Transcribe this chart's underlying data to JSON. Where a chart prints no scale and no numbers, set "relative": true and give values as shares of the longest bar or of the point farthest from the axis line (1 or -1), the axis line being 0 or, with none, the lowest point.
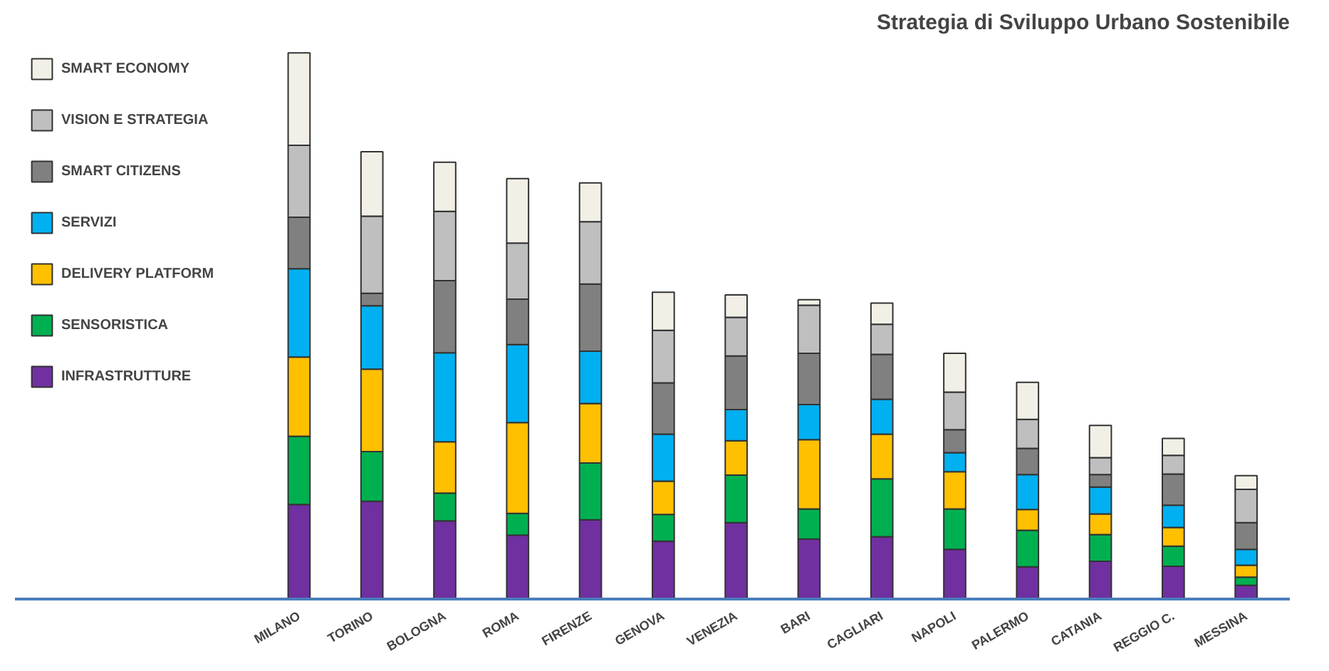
{
  "chart_data": {
    "type": "bar",
    "title": "Strategia di Sviluppo Urbano Sostenibile",
    "stacked": true,
    "relative": true,
    "legend": "left",
    "grid": false,
    "categories": [
      "MILANO",
      "TORINO",
      "BOLOGNA",
      "ROMA",
      "FIRENZE",
      "GENOVA",
      "VENEZIA",
      "BARI",
      "CAGLIARI",
      "NAPOLI",
      "PALERMO",
      "CATANIA",
      "REGGIO C.",
      "MESSINA"
    ],
    "series": [
      {
        "name": "INFRASTRUTTURE",
        "color": "#7030a0",
        "values": [
          0.173,
          0.179,
          0.143,
          0.117,
          0.145,
          0.106,
          0.14,
          0.11,
          0.114,
          0.091,
          0.059,
          0.069,
          0.06,
          0.025
        ]
      },
      {
        "name": "SENSORISTICA",
        "color": "#00b050",
        "values": [
          0.125,
          0.091,
          0.051,
          0.04,
          0.104,
          0.049,
          0.087,
          0.055,
          0.106,
          0.074,
          0.067,
          0.049,
          0.037,
          0.015
        ]
      },
      {
        "name": "DELIVERY PLATFORM",
        "color": "#ffc000",
        "values": [
          0.145,
          0.151,
          0.094,
          0.166,
          0.109,
          0.061,
          0.063,
          0.127,
          0.082,
          0.068,
          0.038,
          0.038,
          0.034,
          0.022
        ]
      },
      {
        "name": "SERVIZI",
        "color": "#00b0f0",
        "values": [
          0.162,
          0.116,
          0.163,
          0.143,
          0.096,
          0.086,
          0.057,
          0.064,
          0.064,
          0.035,
          0.064,
          0.049,
          0.041,
          0.029
        ]
      },
      {
        "name": "SMART CITIZENS",
        "color": "#808080",
        "values": [
          0.094,
          0.023,
          0.132,
          0.083,
          0.123,
          0.094,
          0.098,
          0.094,
          0.082,
          0.042,
          0.048,
          0.023,
          0.057,
          0.049
        ]
      },
      {
        "name": "VISION E STRATEGIA",
        "color": "#bfbfbf",
        "values": [
          0.132,
          0.141,
          0.127,
          0.103,
          0.114,
          0.096,
          0.071,
          0.088,
          0.055,
          0.069,
          0.053,
          0.031,
          0.034,
          0.061
        ]
      },
      {
        "name": "SMART ECONOMY",
        "color": "#f2f0e6",
        "values": [
          0.169,
          0.118,
          0.09,
          0.118,
          0.071,
          0.07,
          0.041,
          0.01,
          0.039,
          0.071,
          0.068,
          0.059,
          0.031,
          0.025
        ]
      }
    ]
  }
}
